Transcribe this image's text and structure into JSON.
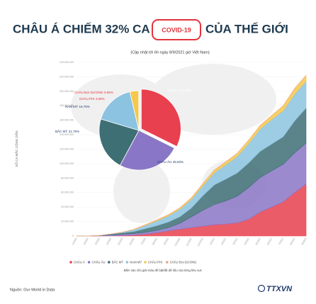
{
  "header": {
    "title_parts": [
      "CHÂU Á CHIẾM 32% CA",
      "COVID-19",
      "CỦA THẾ GIỚI"
    ],
    "subtitle": "(Cập nhật tới 6h ngày 8/9/2021 giờ Việt Nam)",
    "note": "Bấm vào chú giải màu để bật/tắt dữ liệu của từng khu vực",
    "source": "Nguồn: Our World in Data",
    "logo": "TTXVN"
  },
  "chart_data": [
    {
      "type": "area",
      "y_label": "SỐ CA MẮC CỘNG DỒN",
      "categories": [
        "1/2020",
        "2/2020",
        "3/2020",
        "4/2020",
        "5/2020",
        "6/2020",
        "7/2020",
        "8/2020",
        "9/2020",
        "10/2020",
        "11/2020",
        "12/2020",
        "1/2021",
        "2/2021",
        "3/2021",
        "4/2021",
        "5/2021",
        "6/2021",
        "7/2021",
        "8/2021",
        "9/2021"
      ],
      "series": [
        {
          "name": "CHÂU Á",
          "color": "#e8404f",
          "values": [
            10000,
            80000,
            100000,
            300000,
            600000,
            1200000,
            2500000,
            4500000,
            7000000,
            9500000,
            11500000,
            13500000,
            15500000,
            16500000,
            18000000,
            23000000,
            33000000,
            40000000,
            47000000,
            60000000,
            71800000
          ]
        },
        {
          "name": "CHÂU ÂU",
          "color": "#8a76c6",
          "values": [
            0,
            2000,
            400000,
            1200000,
            1800000,
            2200000,
            2600000,
            3200000,
            4500000,
            8000000,
            15000000,
            22000000,
            28000000,
            32000000,
            37000000,
            44000000,
            48000000,
            50000000,
            52000000,
            55000000,
            56700000
          ]
        },
        {
          "name": "BẮC MỸ",
          "color": "#3d6f74",
          "values": [
            0,
            0,
            200000,
            1100000,
            1900000,
            2800000,
            5000000,
            6500000,
            7800000,
            9000000,
            12000000,
            20000000,
            27000000,
            30000000,
            32000000,
            34000000,
            36000000,
            37000000,
            38000000,
            44000000,
            48300000
          ]
        },
        {
          "name": "NAM MỸ",
          "color": "#8cc3e0",
          "values": [
            0,
            0,
            10000,
            150000,
            900000,
            2500000,
            4500000,
            6800000,
            8500000,
            10500000,
            12000000,
            14000000,
            17000000,
            20000000,
            23000000,
            27000000,
            31000000,
            34000000,
            36000000,
            37000000,
            37200000
          ]
        },
        {
          "name": "CHÂU PHI",
          "color": "#f5c84c",
          "values": [
            0,
            0,
            5000,
            40000,
            150000,
            400000,
            900000,
            1200000,
            1500000,
            1800000,
            2100000,
            2700000,
            3500000,
            3900000,
            4200000,
            4500000,
            4800000,
            5500000,
            6800000,
            7800000,
            8000000
          ]
        },
        {
          "name": "CHÂU ĐẠI DƯƠNG",
          "color": "#f0a080",
          "values": [
            0,
            0,
            5000,
            8000,
            9000,
            9000,
            16000,
            26000,
            30000,
            30000,
            32000,
            34000,
            35000,
            37000,
            39000,
            40000,
            42000,
            43000,
            50000,
            80000,
            130000
          ]
        }
      ],
      "ylim": [
        0,
        240000000
      ],
      "yticks": [
        0,
        {
          "value": 20000000,
          "label": "20.000.000"
        },
        {
          "value": 40000000,
          "label": "40.000.000"
        },
        {
          "value": 60000000,
          "label": "60.000.000"
        },
        {
          "value": 80000000,
          "label": "80.000.000"
        },
        {
          "value": 100000000,
          "label": "100.000.000"
        },
        {
          "value": 120000000,
          "label": "120.000.000"
        },
        {
          "value": 140000000,
          "label": "140.000.000"
        },
        {
          "value": 160000000,
          "label": "160.000.000"
        },
        {
          "value": 180000000,
          "label": "180.000.000"
        },
        {
          "value": 200000000,
          "label": "200.000.000"
        },
        {
          "value": 220000000,
          "label": "220.000.000"
        },
        {
          "value": 240000000,
          "label": "240.000.000"
        }
      ],
      "legend": "bottom"
    },
    {
      "type": "pie",
      "categories": [
        "CHÂU Á",
        "CHÂU ÂU",
        "BẮC MỸ",
        "NAM MỸ",
        "CHÂU PHI",
        "CHÂU ĐẠI DƯƠNG"
      ],
      "values": [
        32.33,
        25.53,
        21.75,
        16.75,
        3.59,
        0.06
      ],
      "value_labels": [
        "32.33%",
        "25.53%",
        "21.75%",
        "16.75%",
        "3.59%",
        "0.06%"
      ],
      "colors": [
        "#e8404f",
        "#8a76c6",
        "#3d6f74",
        "#8cc3e0",
        "#f5c84c",
        "#f0a080"
      ]
    }
  ]
}
